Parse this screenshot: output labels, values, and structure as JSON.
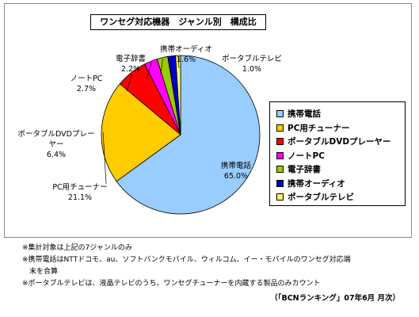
{
  "chart_data": {
    "type": "pie",
    "title": "ワンセグ対応機器　ジャンル別　構成比",
    "slices": [
      {
        "name": "携帯電話",
        "value": 65.0,
        "label": "65.0%",
        "color": "#99ccff"
      },
      {
        "name": "PC用チューナー",
        "value": 21.1,
        "label": "21.1%",
        "color": "#ffcc00"
      },
      {
        "name": "ポータブルDVDプレーヤー",
        "value": 6.4,
        "label": "6.4%",
        "color": "#ff0000"
      },
      {
        "name": "ノートPC",
        "value": 2.7,
        "label": "2.7%",
        "color": "#ff00ff"
      },
      {
        "name": "電子辞書",
        "value": 2.2,
        "label": "2.2%",
        "color": "#99cc00"
      },
      {
        "name": "携帯オーディオ",
        "value": 1.6,
        "label": "1.6%",
        "color": "#0000cc"
      },
      {
        "name": "ポータブルテレビ",
        "value": 1.0,
        "label": "1.0%",
        "color": "#ffff66"
      }
    ],
    "slice_labels": [
      {
        "name": "携帯電話",
        "value": "65.0%"
      },
      {
        "name": "PC用チューナー",
        "value": "21.1%"
      },
      {
        "name": "ポータブルDVDプレー\nヤー",
        "value": "6.4%"
      },
      {
        "name": "ノートPC",
        "value": "2.7%"
      },
      {
        "name": "電子辞書",
        "value": "2.2%"
      },
      {
        "name": "携帯オーディオ",
        "value": "1.6%"
      },
      {
        "name": "ポータブルテレビ",
        "value": "1.0%"
      }
    ],
    "legend": [
      "携帯電話",
      "PC用チューナー",
      "ポータブルDVDプレーヤー",
      "ノートPC",
      "電子辞書",
      "携帯オーディオ",
      "ポータブルテレビ"
    ],
    "legend_position": "right"
  },
  "notes": [
    "※集計対象は上記の7ジャンルのみ",
    "※携帯電話はNTTドコモ、au、ソフトバンクモバイル、ウィルコム、イー・モバイルのワンセグ対応端",
    "　末を合算",
    "※ポータブルテレビは、液晶テレビのうち、ワンセグチューナーを内蔵する製品のみカウント"
  ],
  "source": "（「BCNランキング」07年6月 月次）"
}
